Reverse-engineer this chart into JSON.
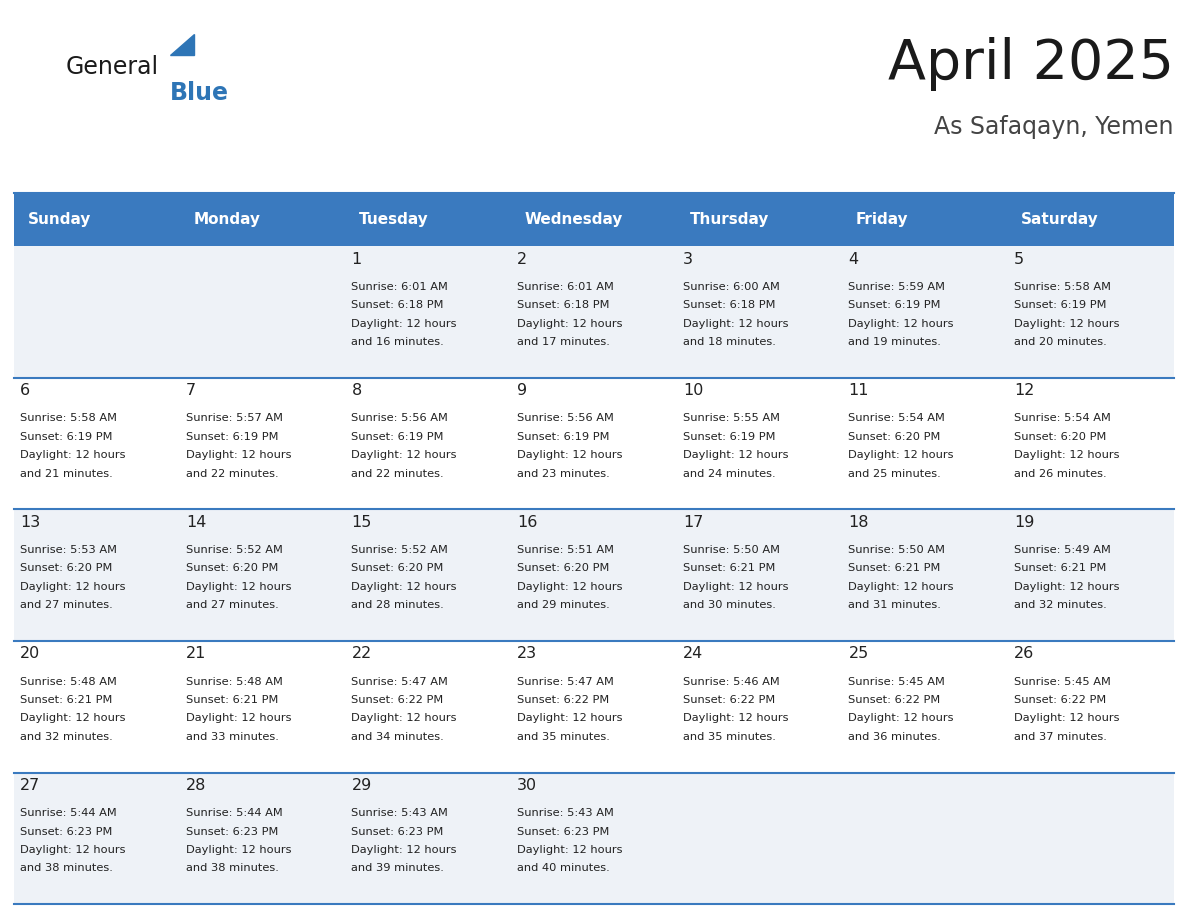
{
  "title": "April 2025",
  "subtitle": "As Safaqayn, Yemen",
  "header_color": "#3a7abf",
  "header_text_color": "#ffffff",
  "day_names": [
    "Sunday",
    "Monday",
    "Tuesday",
    "Wednesday",
    "Thursday",
    "Friday",
    "Saturday"
  ],
  "bg_color": "#ffffff",
  "alt_row_color": "#eef2f7",
  "cell_text_color": "#222222",
  "border_color": "#3a7abf",
  "days": [
    {
      "day": 1,
      "col": 2,
      "row": 0,
      "sunrise": "6:01 AM",
      "sunset": "6:18 PM",
      "daylight_min": 16
    },
    {
      "day": 2,
      "col": 3,
      "row": 0,
      "sunrise": "6:01 AM",
      "sunset": "6:18 PM",
      "daylight_min": 17
    },
    {
      "day": 3,
      "col": 4,
      "row": 0,
      "sunrise": "6:00 AM",
      "sunset": "6:18 PM",
      "daylight_min": 18
    },
    {
      "day": 4,
      "col": 5,
      "row": 0,
      "sunrise": "5:59 AM",
      "sunset": "6:19 PM",
      "daylight_min": 19
    },
    {
      "day": 5,
      "col": 6,
      "row": 0,
      "sunrise": "5:58 AM",
      "sunset": "6:19 PM",
      "daylight_min": 20
    },
    {
      "day": 6,
      "col": 0,
      "row": 1,
      "sunrise": "5:58 AM",
      "sunset": "6:19 PM",
      "daylight_min": 21
    },
    {
      "day": 7,
      "col": 1,
      "row": 1,
      "sunrise": "5:57 AM",
      "sunset": "6:19 PM",
      "daylight_min": 22
    },
    {
      "day": 8,
      "col": 2,
      "row": 1,
      "sunrise": "5:56 AM",
      "sunset": "6:19 PM",
      "daylight_min": 22
    },
    {
      "day": 9,
      "col": 3,
      "row": 1,
      "sunrise": "5:56 AM",
      "sunset": "6:19 PM",
      "daylight_min": 23
    },
    {
      "day": 10,
      "col": 4,
      "row": 1,
      "sunrise": "5:55 AM",
      "sunset": "6:19 PM",
      "daylight_min": 24
    },
    {
      "day": 11,
      "col": 5,
      "row": 1,
      "sunrise": "5:54 AM",
      "sunset": "6:20 PM",
      "daylight_min": 25
    },
    {
      "day": 12,
      "col": 6,
      "row": 1,
      "sunrise": "5:54 AM",
      "sunset": "6:20 PM",
      "daylight_min": 26
    },
    {
      "day": 13,
      "col": 0,
      "row": 2,
      "sunrise": "5:53 AM",
      "sunset": "6:20 PM",
      "daylight_min": 27
    },
    {
      "day": 14,
      "col": 1,
      "row": 2,
      "sunrise": "5:52 AM",
      "sunset": "6:20 PM",
      "daylight_min": 27
    },
    {
      "day": 15,
      "col": 2,
      "row": 2,
      "sunrise": "5:52 AM",
      "sunset": "6:20 PM",
      "daylight_min": 28
    },
    {
      "day": 16,
      "col": 3,
      "row": 2,
      "sunrise": "5:51 AM",
      "sunset": "6:20 PM",
      "daylight_min": 29
    },
    {
      "day": 17,
      "col": 4,
      "row": 2,
      "sunrise": "5:50 AM",
      "sunset": "6:21 PM",
      "daylight_min": 30
    },
    {
      "day": 18,
      "col": 5,
      "row": 2,
      "sunrise": "5:50 AM",
      "sunset": "6:21 PM",
      "daylight_min": 31
    },
    {
      "day": 19,
      "col": 6,
      "row": 2,
      "sunrise": "5:49 AM",
      "sunset": "6:21 PM",
      "daylight_min": 32
    },
    {
      "day": 20,
      "col": 0,
      "row": 3,
      "sunrise": "5:48 AM",
      "sunset": "6:21 PM",
      "daylight_min": 32
    },
    {
      "day": 21,
      "col": 1,
      "row": 3,
      "sunrise": "5:48 AM",
      "sunset": "6:21 PM",
      "daylight_min": 33
    },
    {
      "day": 22,
      "col": 2,
      "row": 3,
      "sunrise": "5:47 AM",
      "sunset": "6:22 PM",
      "daylight_min": 34
    },
    {
      "day": 23,
      "col": 3,
      "row": 3,
      "sunrise": "5:47 AM",
      "sunset": "6:22 PM",
      "daylight_min": 35
    },
    {
      "day": 24,
      "col": 4,
      "row": 3,
      "sunrise": "5:46 AM",
      "sunset": "6:22 PM",
      "daylight_min": 35
    },
    {
      "day": 25,
      "col": 5,
      "row": 3,
      "sunrise": "5:45 AM",
      "sunset": "6:22 PM",
      "daylight_min": 36
    },
    {
      "day": 26,
      "col": 6,
      "row": 3,
      "sunrise": "5:45 AM",
      "sunset": "6:22 PM",
      "daylight_min": 37
    },
    {
      "day": 27,
      "col": 0,
      "row": 4,
      "sunrise": "5:44 AM",
      "sunset": "6:23 PM",
      "daylight_min": 38
    },
    {
      "day": 28,
      "col": 1,
      "row": 4,
      "sunrise": "5:44 AM",
      "sunset": "6:23 PM",
      "daylight_min": 38
    },
    {
      "day": 29,
      "col": 2,
      "row": 4,
      "sunrise": "5:43 AM",
      "sunset": "6:23 PM",
      "daylight_min": 39
    },
    {
      "day": 30,
      "col": 3,
      "row": 4,
      "sunrise": "5:43 AM",
      "sunset": "6:23 PM",
      "daylight_min": 40
    }
  ]
}
